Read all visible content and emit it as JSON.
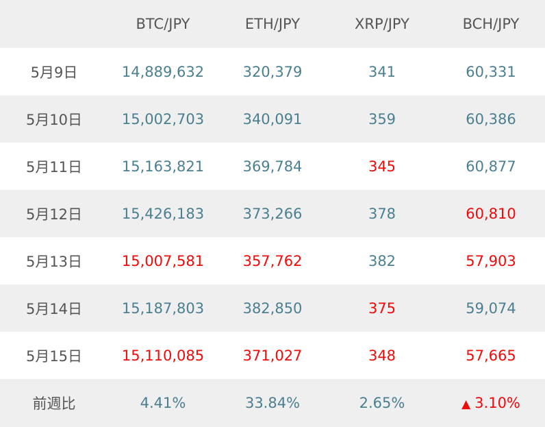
{
  "colors": {
    "up": "#4a7f90",
    "down": "#f00a0a",
    "label": "#555555",
    "shade": "#efefef"
  },
  "header": {
    "date": "",
    "btc": "BTC/JPY",
    "eth": "ETH/JPY",
    "xrp": "XRP/JPY",
    "bch": "BCH/JPY"
  },
  "rows": [
    {
      "date": "5月9日",
      "btc": "14,889,632",
      "eth": "320,379",
      "xrp": "341",
      "bch": "60,331",
      "btc_status": "up",
      "eth_status": "up",
      "xrp_status": "up",
      "bch_status": "up"
    },
    {
      "date": "5月10日",
      "btc": "15,002,703",
      "eth": "340,091",
      "xrp": "359",
      "bch": "60,386",
      "btc_status": "up",
      "eth_status": "up",
      "xrp_status": "up",
      "bch_status": "up"
    },
    {
      "date": "5月11日",
      "btc": "15,163,821",
      "eth": "369,784",
      "xrp": "345",
      "bch": "60,877",
      "btc_status": "up",
      "eth_status": "up",
      "xrp_status": "down",
      "bch_status": "up"
    },
    {
      "date": "5月12日",
      "btc": "15,426,183",
      "eth": "373,266",
      "xrp": "378",
      "bch": "60,810",
      "btc_status": "up",
      "eth_status": "up",
      "xrp_status": "up",
      "bch_status": "down"
    },
    {
      "date": "5月13日",
      "btc": "15,007,581",
      "eth": "357,762",
      "xrp": "382",
      "bch": "57,903",
      "btc_status": "down",
      "eth_status": "down",
      "xrp_status": "up",
      "bch_status": "down"
    },
    {
      "date": "5月14日",
      "btc": "15,187,803",
      "eth": "382,850",
      "xrp": "375",
      "bch": "59,074",
      "btc_status": "up",
      "eth_status": "up",
      "xrp_status": "down",
      "bch_status": "up"
    },
    {
      "date": "5月15日",
      "btc": "15,110,085",
      "eth": "371,027",
      "xrp": "348",
      "bch": "57,665",
      "btc_status": "down",
      "eth_status": "down",
      "xrp_status": "down",
      "bch_status": "down"
    }
  ],
  "footer": {
    "label": "前週比",
    "btc": "4.41%",
    "eth": "33.84%",
    "xrp": "2.65%",
    "bch": "3.10%",
    "bch_arrow": "▲",
    "btc_status": "up",
    "eth_status": "up",
    "xrp_status": "up",
    "bch_status": "down"
  }
}
